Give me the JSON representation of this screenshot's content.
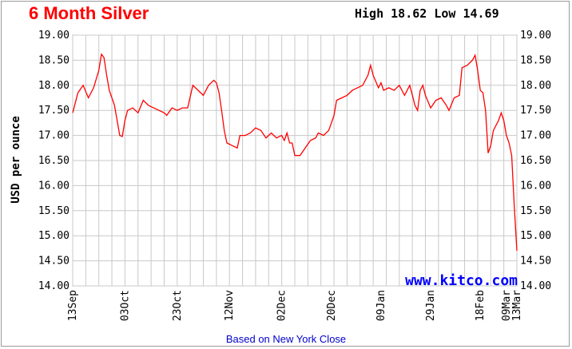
{
  "header": {
    "title": "6 Month Silver",
    "high_label": "High",
    "high_value": "18.62",
    "low_label": "Low",
    "low_value": "14.69"
  },
  "watermark": "www.kitco.com",
  "footnote": "Based on New York Close",
  "colors": {
    "title": "#ff0000",
    "line": "#ff0000",
    "grid": "#c0c0c0",
    "brand": "#0000ff",
    "footnote": "#0000cc"
  },
  "chart_data": {
    "type": "line",
    "title": "6 Month Silver",
    "ylabel": "USD per ounce",
    "xlabel": "",
    "ylim": [
      14.0,
      19.0
    ],
    "yticks": [
      "14.00",
      "14.50",
      "15.00",
      "15.50",
      "16.00",
      "16.50",
      "17.00",
      "17.50",
      "18.00",
      "18.50",
      "19.00"
    ],
    "xticks": [
      "13Sep",
      "03Oct",
      "23Oct",
      "12Nov",
      "02Dec",
      "20Dec",
      "09Jan",
      "29Jan",
      "18Feb",
      "09Mar",
      "13Mar"
    ],
    "grid": true,
    "series": [
      {
        "points": [
          [
            0,
            17.45
          ],
          [
            2,
            17.85
          ],
          [
            4,
            18.0
          ],
          [
            6,
            17.75
          ],
          [
            8,
            17.95
          ],
          [
            10,
            18.3
          ],
          [
            11,
            18.62
          ],
          [
            12,
            18.55
          ],
          [
            13,
            18.2
          ],
          [
            14,
            17.9
          ],
          [
            16,
            17.6
          ],
          [
            18,
            17.0
          ],
          [
            19,
            16.98
          ],
          [
            20,
            17.3
          ],
          [
            21,
            17.5
          ],
          [
            23,
            17.55
          ],
          [
            25,
            17.45
          ],
          [
            27,
            17.7
          ],
          [
            29,
            17.6
          ],
          [
            31,
            17.55
          ],
          [
            33,
            17.5
          ],
          [
            35,
            17.45
          ],
          [
            36,
            17.4
          ],
          [
            38,
            17.55
          ],
          [
            40,
            17.5
          ],
          [
            42,
            17.55
          ],
          [
            44,
            17.55
          ],
          [
            46,
            18.0
          ],
          [
            48,
            17.9
          ],
          [
            50,
            17.8
          ],
          [
            52,
            18.0
          ],
          [
            54,
            18.1
          ],
          [
            55,
            18.05
          ],
          [
            56,
            17.85
          ],
          [
            57,
            17.5
          ],
          [
            58,
            17.1
          ],
          [
            59,
            16.85
          ],
          [
            61,
            16.8
          ],
          [
            63,
            16.75
          ],
          [
            64,
            17.0
          ],
          [
            66,
            17.0
          ],
          [
            68,
            17.05
          ],
          [
            70,
            17.15
          ],
          [
            72,
            17.1
          ],
          [
            74,
            16.95
          ],
          [
            76,
            17.05
          ],
          [
            78,
            16.95
          ],
          [
            80,
            17.0
          ],
          [
            81,
            16.9
          ],
          [
            82,
            17.05
          ],
          [
            83,
            16.85
          ],
          [
            84,
            16.85
          ],
          [
            85,
            16.6
          ],
          [
            87,
            16.6
          ],
          [
            89,
            16.75
          ],
          [
            91,
            16.9
          ],
          [
            93,
            16.95
          ],
          [
            94,
            17.05
          ],
          [
            96,
            17.0
          ],
          [
            98,
            17.1
          ],
          [
            100,
            17.4
          ],
          [
            101,
            17.7
          ],
          [
            103,
            17.75
          ],
          [
            105,
            17.8
          ],
          [
            107,
            17.9
          ],
          [
            109,
            17.95
          ],
          [
            111,
            18.0
          ],
          [
            113,
            18.2
          ],
          [
            114,
            18.4
          ],
          [
            115,
            18.2
          ],
          [
            117,
            17.95
          ],
          [
            118,
            18.05
          ],
          [
            119,
            17.9
          ],
          [
            121,
            17.95
          ],
          [
            123,
            17.9
          ],
          [
            125,
            18.0
          ],
          [
            127,
            17.8
          ],
          [
            129,
            18.0
          ],
          [
            130,
            17.8
          ],
          [
            131,
            17.6
          ],
          [
            132,
            17.5
          ],
          [
            133,
            17.9
          ],
          [
            134,
            18.0
          ],
          [
            135,
            17.8
          ],
          [
            137,
            17.55
          ],
          [
            139,
            17.7
          ],
          [
            141,
            17.75
          ],
          [
            143,
            17.6
          ],
          [
            144,
            17.5
          ],
          [
            146,
            17.75
          ],
          [
            148,
            17.8
          ],
          [
            149,
            18.35
          ],
          [
            151,
            18.4
          ],
          [
            153,
            18.5
          ],
          [
            154,
            18.6
          ],
          [
            155,
            18.3
          ],
          [
            156,
            17.9
          ],
          [
            157,
            17.85
          ],
          [
            158,
            17.5
          ],
          [
            159,
            16.65
          ],
          [
            160,
            16.8
          ],
          [
            161,
            17.1
          ],
          [
            163,
            17.3
          ],
          [
            164,
            17.45
          ],
          [
            165,
            17.3
          ],
          [
            166,
            17.0
          ],
          [
            167,
            16.85
          ],
          [
            168,
            16.6
          ],
          [
            169,
            15.6
          ],
          [
            170,
            14.7
          ]
        ]
      }
    ]
  }
}
